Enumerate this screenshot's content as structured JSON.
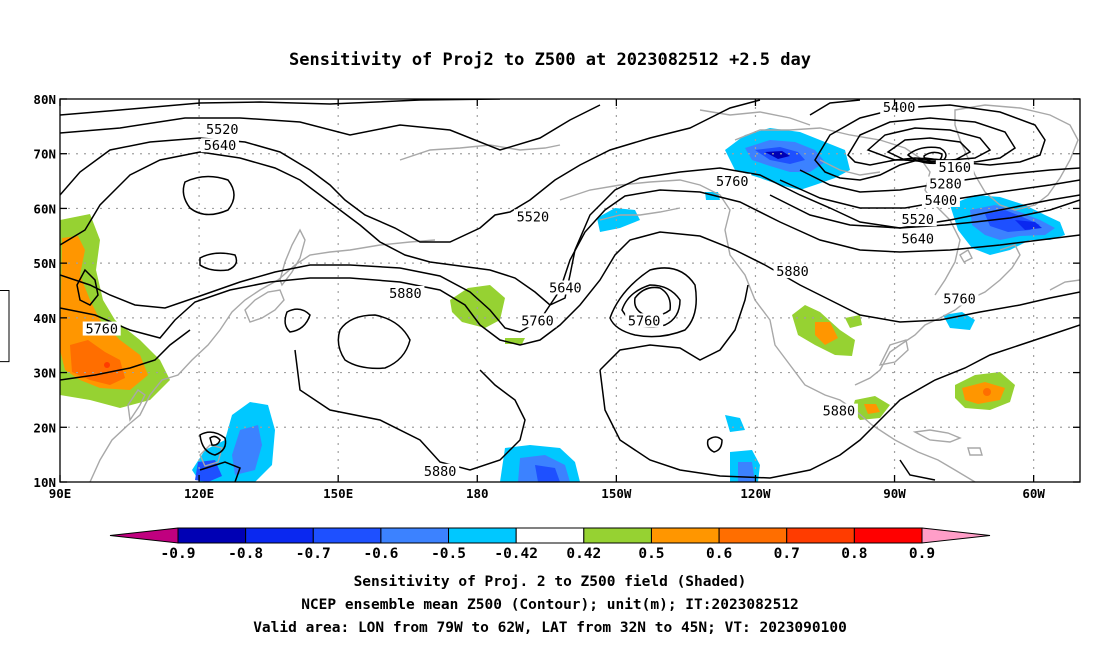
{
  "title": "Sensitivity of Proj2 to Z500 at 2023082512 +2.5 day",
  "captions": {
    "line1": "Sensitivity of Proj. 2 to Z500 field (Shaded)",
    "line2": "NCEP ensemble mean Z500 (Contour); unit(m); IT:2023082512",
    "line3": "Valid area: LON from 79W to 62W, LAT from 32N to 45N; VT: 2023090100"
  },
  "map": {
    "lon_range": [
      90,
      310
    ],
    "lat_range": [
      10,
      80
    ],
    "lat_ticks": [
      {
        "value": 80,
        "label": "80N"
      },
      {
        "value": 70,
        "label": "70N"
      },
      {
        "value": 60,
        "label": "60N"
      },
      {
        "value": 50,
        "label": "50N"
      },
      {
        "value": 40,
        "label": "40N"
      },
      {
        "value": 30,
        "label": "30N"
      },
      {
        "value": 20,
        "label": "20N"
      },
      {
        "value": 10,
        "label": "10N"
      }
    ],
    "lon_ticks": [
      {
        "value": 90,
        "label": "90E"
      },
      {
        "value": 120,
        "label": "120E"
      },
      {
        "value": 150,
        "label": "150E"
      },
      {
        "value": 180,
        "label": "180"
      },
      {
        "value": 210,
        "label": "150W"
      },
      {
        "value": 240,
        "label": "120W"
      },
      {
        "value": 270,
        "label": "90W"
      },
      {
        "value": 300,
        "label": "60W"
      }
    ],
    "valid_box": {
      "lon": [
        281,
        298
      ],
      "lat": [
        32,
        45
      ]
    },
    "contour_labels": [
      {
        "text": "5520",
        "lon": 125,
        "lat": 74
      },
      {
        "text": "5640",
        "lon": 124.5,
        "lat": 71
      },
      {
        "text": "5520",
        "lon": 192,
        "lat": 58
      },
      {
        "text": "5760",
        "lon": 235,
        "lat": 64.5
      },
      {
        "text": "5400",
        "lon": 271,
        "lat": 78
      },
      {
        "text": "5160",
        "lon": 283,
        "lat": 67
      },
      {
        "text": "5280",
        "lon": 281,
        "lat": 64
      },
      {
        "text": "5400",
        "lon": 280,
        "lat": 61
      },
      {
        "text": "5520",
        "lon": 275,
        "lat": 57.5
      },
      {
        "text": "5640",
        "lon": 275,
        "lat": 54
      },
      {
        "text": "5880",
        "lon": 164.5,
        "lat": 44
      },
      {
        "text": "5640",
        "lon": 199,
        "lat": 45
      },
      {
        "text": "5760",
        "lon": 193,
        "lat": 39
      },
      {
        "text": "5760",
        "lon": 216,
        "lat": 39
      },
      {
        "text": "5880",
        "lon": 248,
        "lat": 48
      },
      {
        "text": "5760",
        "lon": 284,
        "lat": 43
      },
      {
        "text": "5760",
        "lon": 99,
        "lat": 37.5
      },
      {
        "text": "5880",
        "lon": 258,
        "lat": 22.5
      },
      {
        "text": "5880",
        "lon": 172,
        "lat": 11.5
      }
    ]
  },
  "colorbar": {
    "labels": [
      "-0.9",
      "-0.8",
      "-0.7",
      "-0.6",
      "-0.5",
      "-0.42",
      "0.42",
      "0.5",
      "0.6",
      "0.7",
      "0.8",
      "0.9"
    ],
    "colors": {
      "below_min": "#c0007f",
      "bins": [
        "#0000b4",
        "#0a28f0",
        "#1e50ff",
        "#3c82ff",
        "#00c8ff",
        "#ffffff",
        "#96d232",
        "#ff9600",
        "#ff6e00",
        "#ff3c00",
        "#ff0000"
      ],
      "above_max": "#ff9ec8"
    }
  }
}
